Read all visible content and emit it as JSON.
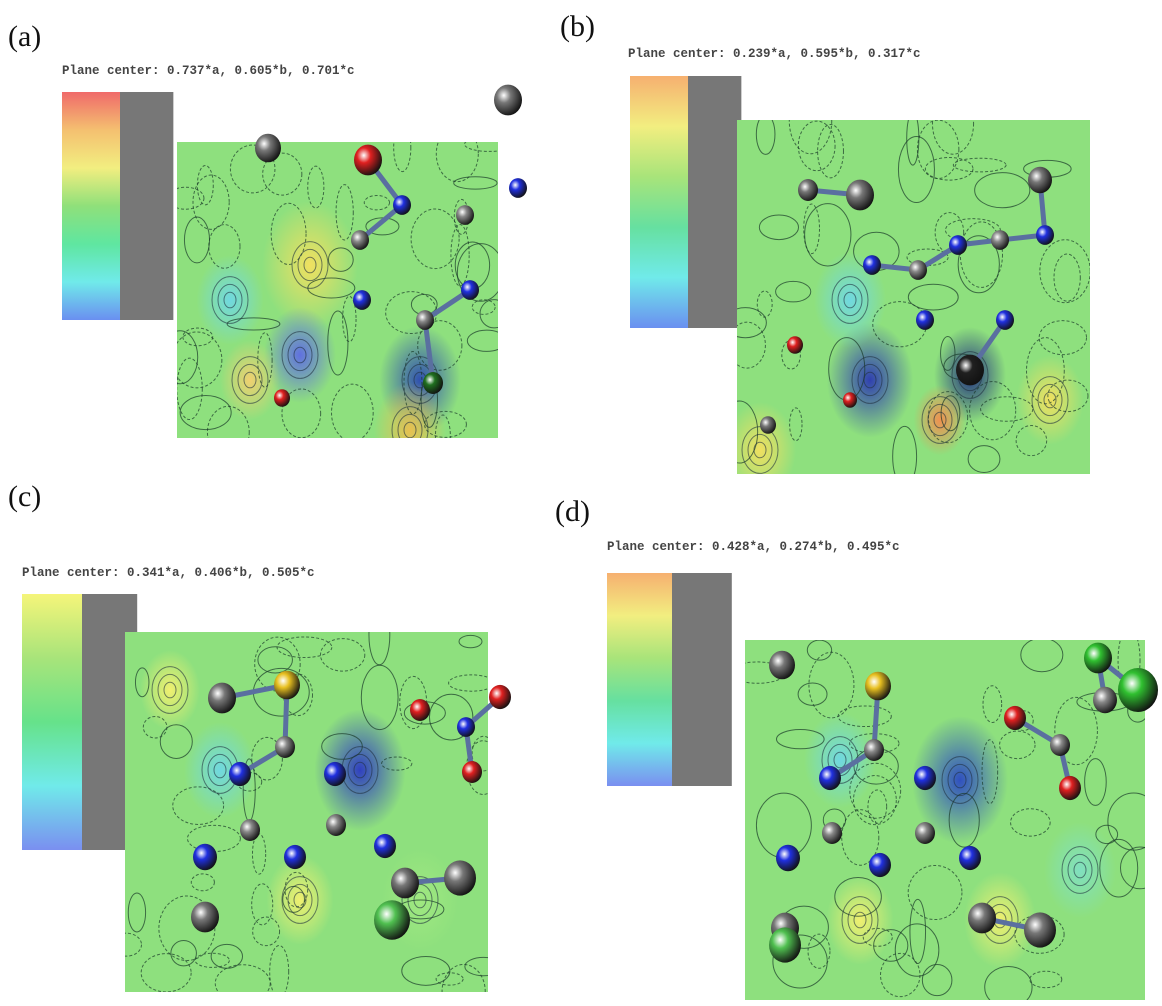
{
  "panels": [
    {
      "label": "(a)",
      "plane_center": "Plane center: 0.737*a, 0.605*b, 0.701*c"
    },
    {
      "label": "(b)",
      "plane_center": "Plane center: 0.239*a, 0.595*b, 0.317*c"
    },
    {
      "label": "(c)",
      "plane_center": "Plane center: 0.341*a, 0.406*b, 0.505*c"
    },
    {
      "label": "(d)",
      "plane_center": "Plane center: 0.428*a, 0.274*b, 0.495*c"
    }
  ]
}
